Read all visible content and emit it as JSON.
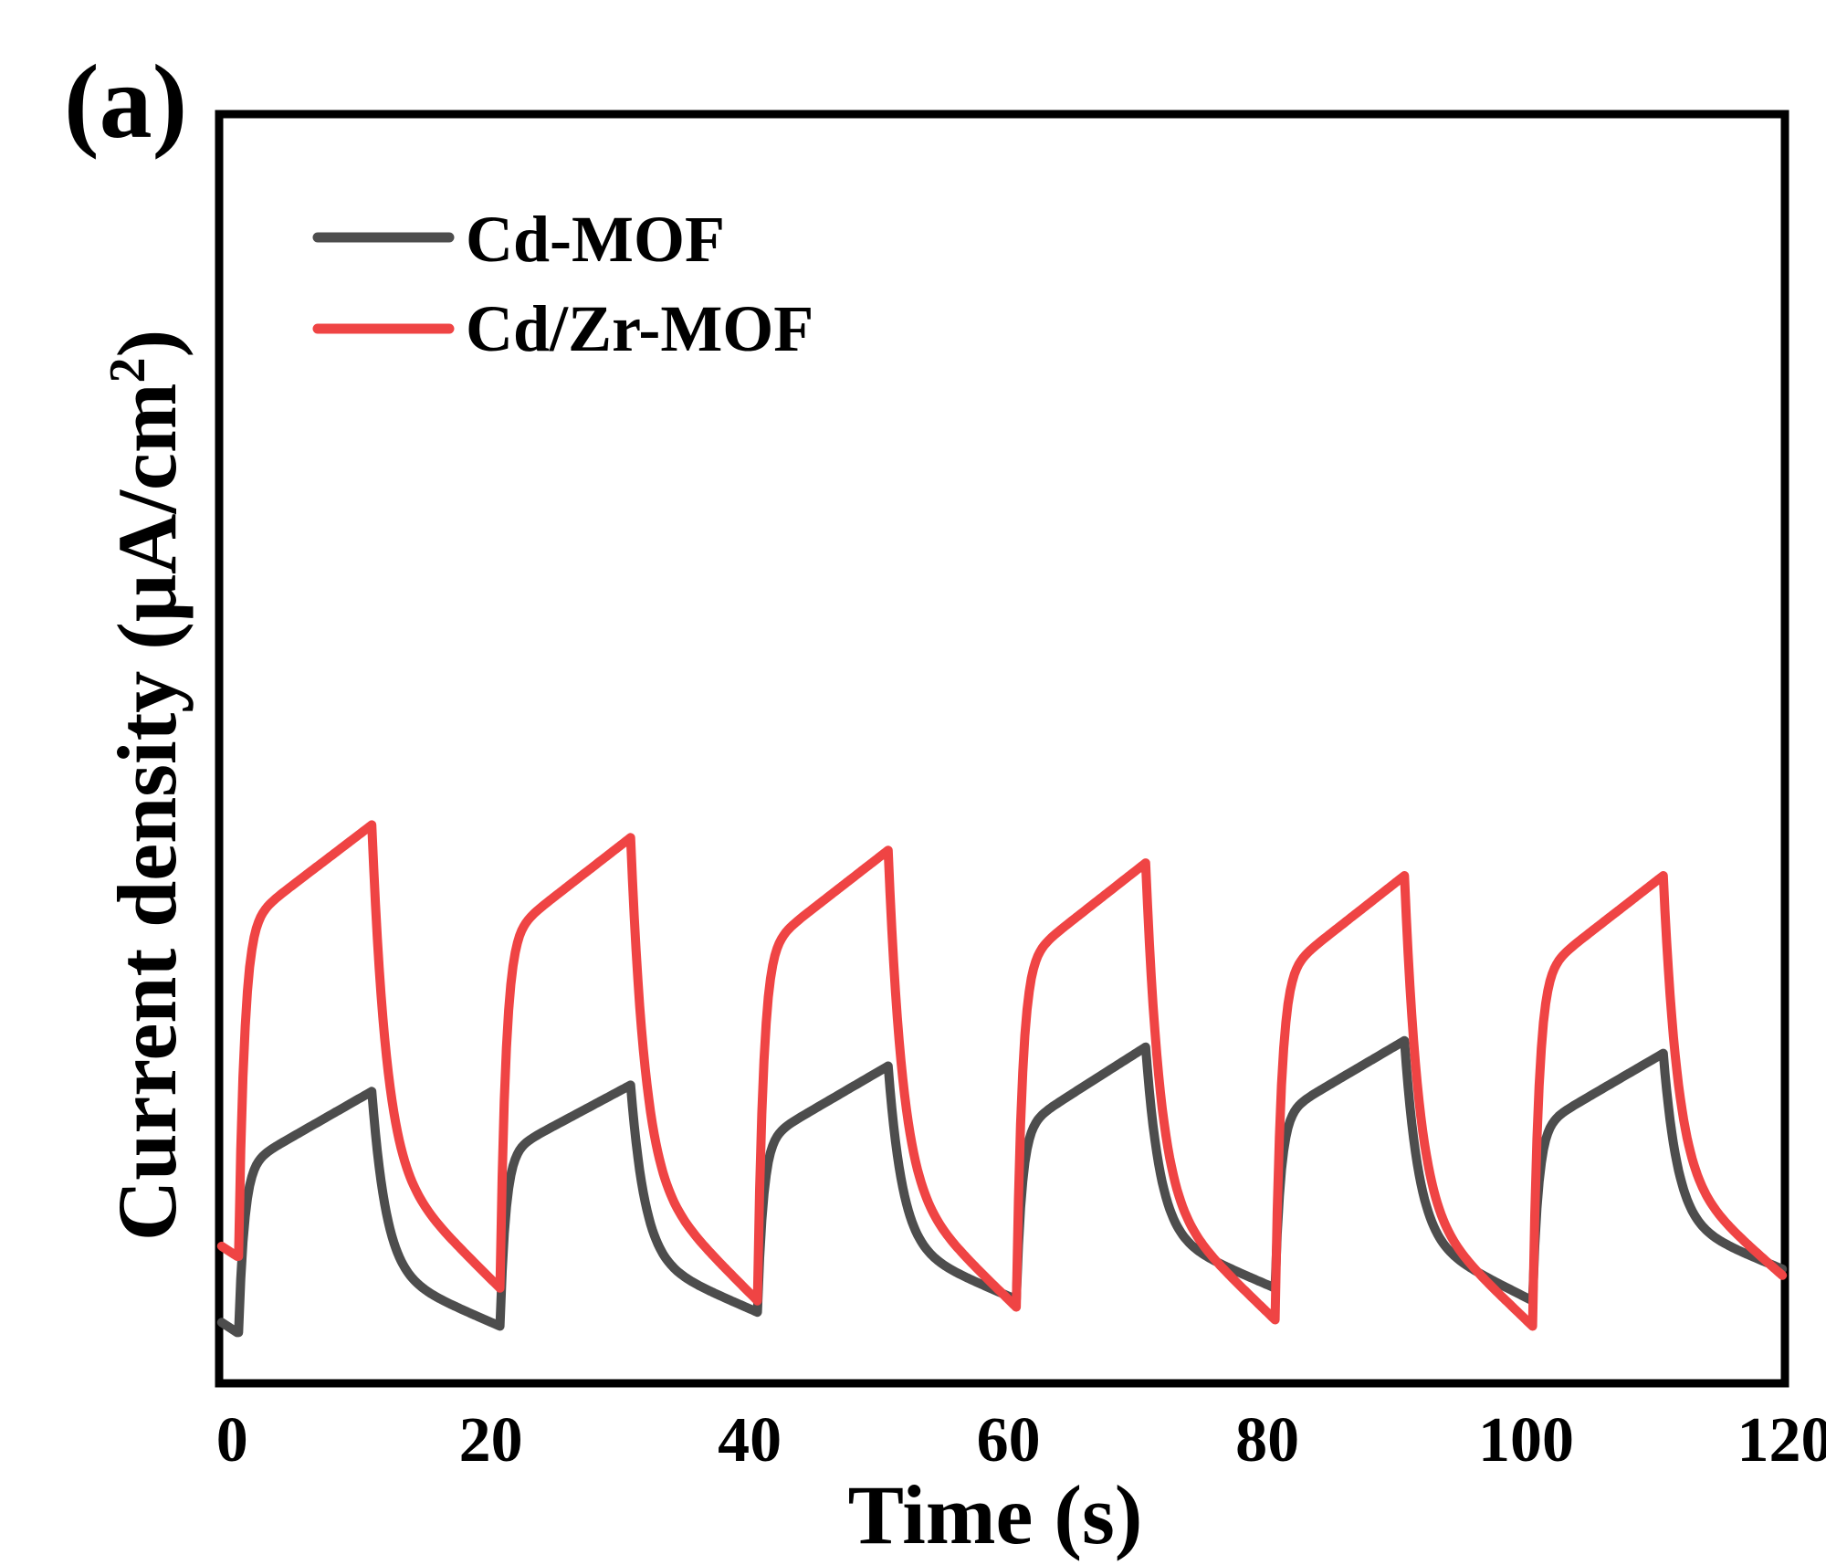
{
  "panel_label": "(a)",
  "colors": {
    "series_1": "#4d4d4d",
    "series_2": "#ef4444",
    "axis": "#000000"
  },
  "chart_data": {
    "type": "line",
    "title": "",
    "xlabel": "Time (s)",
    "ylabel_parts": {
      "main": "Current density (μA/cm",
      "sup": "2",
      "close": ")"
    },
    "xlim": [
      -1,
      120
    ],
    "ylim": [
      0,
      1
    ],
    "xticks": [
      "0",
      "20",
      "40",
      "60",
      "80",
      "100",
      "120"
    ],
    "xtick_values": [
      0,
      20,
      40,
      60,
      80,
      100,
      120
    ],
    "y_tick_labels_shown": false,
    "legend_position": "top-left",
    "series": [
      {
        "name": "Cd-MOF",
        "color": "#4d4d4d",
        "cycles": [
          {
            "on": 0.5,
            "off": 10.8,
            "start": 0.04,
            "plateau": 0.17,
            "peak": 0.23,
            "end": 0.045
          },
          {
            "on": 20.7,
            "off": 30.8,
            "start": 0.045,
            "plateau": 0.18,
            "peak": 0.235,
            "end": 0.056
          },
          {
            "on": 40.6,
            "off": 50.7,
            "start": 0.056,
            "plateau": 0.19,
            "peak": 0.25,
            "end": 0.066
          },
          {
            "on": 60.6,
            "off": 70.6,
            "start": 0.066,
            "plateau": 0.2,
            "peak": 0.265,
            "end": 0.075
          },
          {
            "on": 80.6,
            "off": 90.6,
            "start": 0.075,
            "plateau": 0.21,
            "peak": 0.27,
            "end": 0.065
          },
          {
            "on": 100.5,
            "off": 110.6,
            "start": 0.065,
            "plateau": 0.2,
            "peak": 0.26,
            "end": 0.09
          }
        ],
        "end_x": 119.8
      },
      {
        "name": "Cd/Zr-MOF",
        "color": "#ef4444",
        "cycles": [
          {
            "on": 0.5,
            "off": 10.8,
            "start": 0.1,
            "plateau": 0.36,
            "peak": 0.44,
            "end": 0.075
          },
          {
            "on": 20.7,
            "off": 30.8,
            "start": 0.075,
            "plateau": 0.35,
            "peak": 0.43,
            "end": 0.065
          },
          {
            "on": 40.6,
            "off": 50.7,
            "start": 0.065,
            "plateau": 0.34,
            "peak": 0.42,
            "end": 0.06
          },
          {
            "on": 60.6,
            "off": 70.6,
            "start": 0.06,
            "plateau": 0.33,
            "peak": 0.41,
            "end": 0.05
          },
          {
            "on": 80.6,
            "off": 90.6,
            "start": 0.05,
            "plateau": 0.32,
            "peak": 0.4,
            "end": 0.045
          },
          {
            "on": 100.5,
            "off": 110.6,
            "start": 0.045,
            "plateau": 0.32,
            "peak": 0.4,
            "end": 0.085
          }
        ],
        "end_x": 119.8
      }
    ]
  }
}
